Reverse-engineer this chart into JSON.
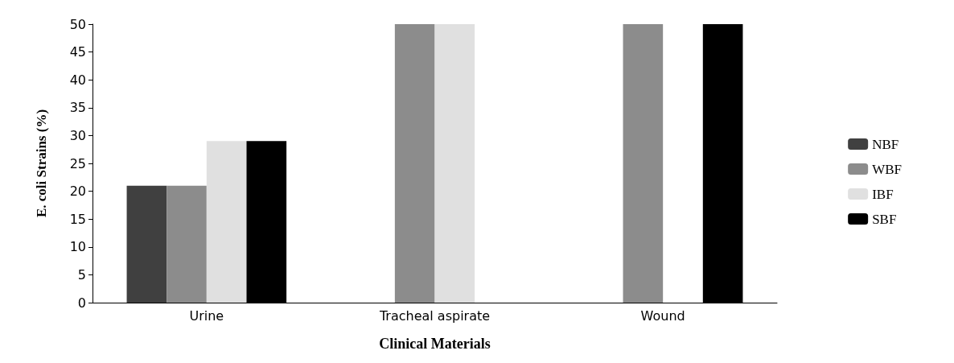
{
  "chart_data": {
    "type": "bar",
    "xlabel": "Clinical Materials",
    "ylabel": "E. coli Strains (%)",
    "categories": [
      "Urine",
      "Tracheal aspirate",
      "Wound"
    ],
    "series": [
      {
        "name": "NBF",
        "color": "#404040",
        "values": [
          21,
          0,
          0
        ]
      },
      {
        "name": "WBF",
        "color": "#8c8c8c",
        "values": [
          21,
          50,
          50
        ]
      },
      {
        "name": "IBF",
        "color": "#e0e0e0",
        "values": [
          29,
          50,
          0
        ]
      },
      {
        "name": "SBF",
        "color": "#000000",
        "values": [
          29,
          0,
          50
        ]
      }
    ],
    "ylim": [
      0,
      50
    ],
    "yticks": [
      0,
      5,
      10,
      15,
      20,
      25,
      30,
      35,
      40,
      45,
      50
    ],
    "grid": false,
    "legend": "right"
  }
}
